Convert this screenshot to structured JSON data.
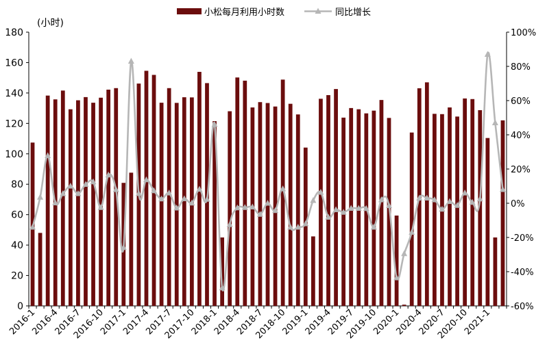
{
  "chart_data": {
    "type": "bar",
    "unit_label": "(小时)",
    "legend_placement": "top",
    "grid": false,
    "y_left": {
      "min": 0,
      "max": 180,
      "step": 20
    },
    "y_right": {
      "min": -60,
      "max": 100,
      "step": 20,
      "format": "percent"
    },
    "x_tick_labels": [
      "2016-1",
      "2016-4",
      "2016-7",
      "2016-10",
      "2017-1",
      "2017-4",
      "2017-7",
      "2017-10",
      "2018-1",
      "2018-4",
      "2018-7",
      "2018-10",
      "2019-1",
      "2019-4",
      "2019-7",
      "2019-10",
      "2020-1",
      "2020-4",
      "2020-7",
      "2020-10",
      "2021-1"
    ],
    "x_tick_every": 3,
    "categories": [
      "2016-1",
      "2016-2",
      "2016-3",
      "2016-4",
      "2016-5",
      "2016-6",
      "2016-7",
      "2016-8",
      "2016-9",
      "2016-10",
      "2016-11",
      "2016-12",
      "2017-1",
      "2017-2",
      "2017-3",
      "2017-4",
      "2017-5",
      "2017-6",
      "2017-7",
      "2017-8",
      "2017-9",
      "2017-10",
      "2017-11",
      "2017-12",
      "2018-1",
      "2018-2",
      "2018-3",
      "2018-4",
      "2018-5",
      "2018-6",
      "2018-7",
      "2018-8",
      "2018-9",
      "2018-10",
      "2018-11",
      "2018-12",
      "2019-1",
      "2019-2",
      "2019-3",
      "2019-4",
      "2019-5",
      "2019-6",
      "2019-7",
      "2019-8",
      "2019-9",
      "2019-10",
      "2019-11",
      "2019-12",
      "2020-1",
      "2020-2",
      "2020-3",
      "2020-4",
      "2020-5",
      "2020-6",
      "2020-7",
      "2020-8",
      "2020-9",
      "2020-10",
      "2020-11",
      "2020-12",
      "2021-1",
      "2021-2",
      "2021-3"
    ],
    "series": [
      {
        "name": "小松每月利用小时数",
        "type": "bar",
        "axis": "left",
        "color": "#6b0d0d",
        "values": [
          107.4,
          48.0,
          138.3,
          135.8,
          141.6,
          129.3,
          135.2,
          137.3,
          133.6,
          136.9,
          142.2,
          143.2,
          80.9,
          87.6,
          146.2,
          154.6,
          151.9,
          133.6,
          143.2,
          133.5,
          137.2,
          137.1,
          153.9,
          146.5,
          121.5,
          45.0,
          128.0,
          150.2,
          148.1,
          130.5,
          134.0,
          133.4,
          131.1,
          148.8,
          132.9,
          125.9,
          104.1,
          45.7,
          136.2,
          138.6,
          142.6,
          123.8,
          130.1,
          129.3,
          126.6,
          128.4,
          135.4,
          123.6,
          59.4,
          0.8,
          114.0,
          143.1,
          147.0,
          126.3,
          126.1,
          130.5,
          124.5,
          136.4,
          136.0,
          128.7,
          110.4,
          45.0,
          122.0
        ]
      },
      {
        "name": "同比增长",
        "type": "line",
        "axis": "right",
        "color": "#b6b6b6",
        "values": [
          -14.0,
          3.5,
          27.8,
          0.2,
          5.6,
          10.0,
          5.6,
          11.0,
          12.5,
          -2.5,
          16.5,
          8.0,
          -25.9,
          83.0,
          5.7,
          13.7,
          7.3,
          2.5,
          6.0,
          -2.8,
          2.6,
          0.1,
          8.2,
          2.3,
          46.0,
          -49.5,
          -12.5,
          -2.7,
          -2.5,
          -2.2,
          -6.5,
          0.0,
          -4.3,
          8.4,
          -14.0,
          -14.0,
          -12.0,
          1.6,
          6.4,
          -8.2,
          -3.8,
          -5.3,
          -3.0,
          -3.0,
          -3.1,
          -14.0,
          2.0,
          -1.4,
          -43.6,
          -29.5,
          -17.0,
          3.0,
          3.0,
          2.0,
          -3.5,
          1.0,
          -1.3,
          6.0,
          0.5,
          2.5,
          87.0,
          47.0,
          8.0
        ]
      }
    ]
  }
}
